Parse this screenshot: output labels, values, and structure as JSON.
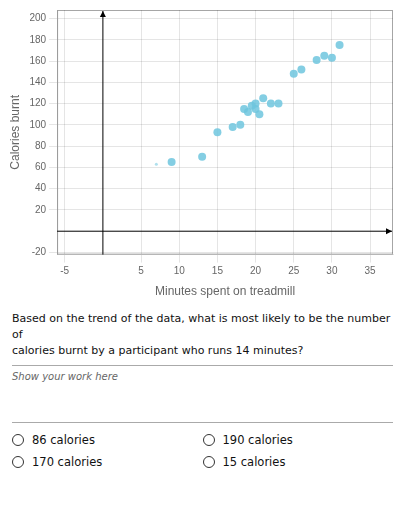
{
  "chart_data": {
    "type": "scatter",
    "xlabel": "Minutes spent on treadmill",
    "ylabel": "Calories burnt",
    "series": [
      {
        "x": [
          9,
          13,
          15,
          17,
          18,
          18.5,
          19,
          19.5,
          20,
          20,
          20.5,
          21,
          22,
          23,
          25,
          26,
          28,
          29,
          30,
          31
        ],
        "values": [
          65,
          70,
          93,
          98,
          100,
          115,
          112,
          118,
          120,
          115,
          110,
          125,
          120,
          120,
          148,
          152,
          161,
          165,
          163,
          175
        ],
        "color": "#6ec6de"
      },
      {
        "x": [
          7
        ],
        "values": [
          63
        ],
        "color": "#6ec6de"
      }
    ],
    "xlim": [
      -6,
      38
    ],
    "ylim": [
      -22,
      208
    ],
    "xticks": [
      -5,
      5,
      10,
      15,
      20,
      25,
      30,
      35
    ],
    "yticks": [
      -20,
      20,
      40,
      60,
      80,
      100,
      120,
      140,
      160,
      180,
      200
    ],
    "grid": true,
    "annotations": [
      "Based on the trend of the data, what is most likely to be the number of\ncalories burnt by a participant who runs 14 minutes?",
      "Show your work here",
      "86 calories",
      "190 calories",
      "170 calories",
      "15 calories"
    ]
  }
}
